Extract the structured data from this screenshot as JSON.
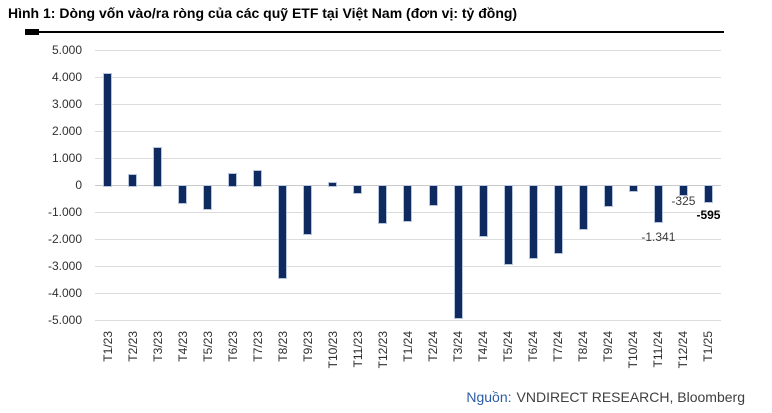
{
  "title": "Hình 1: Dòng vốn vào/ra ròng của các quỹ ETF tại Việt Nam (đơn vị: tỷ đồng)",
  "source": {
    "prefix": "Nguồn:",
    "text": "VNDIRECT RESEARCH, Bloomberg"
  },
  "colors": {
    "bar_fill": "#0f2a5f",
    "bar_border": "#b7c4de",
    "gridline": "#dcdcdc",
    "axis_text": "#303030",
    "source_prefix": "#2b5ca8"
  },
  "chart_data": {
    "type": "bar",
    "title": "Hình 1: Dòng vốn vào/ra ròng của các quỹ ETF tại Việt Nam (đơn vị: tỷ đồng)",
    "xlabel": "",
    "ylabel": "tỷ đồng",
    "ylim": [
      -5000,
      5000
    ],
    "grid": true,
    "y_tick_labels": [
      "5.000",
      "4.000",
      "3.000",
      "2.000",
      "1.000",
      "0",
      "-1.000",
      "-2.000",
      "-3.000",
      "-4.000",
      "-5.000"
    ],
    "categories": [
      "T1/23",
      "T2/23",
      "T3/23",
      "T4/23",
      "T5/23",
      "T6/23",
      "T7/23",
      "T8/23",
      "T9/23",
      "T10/23",
      "T11/23",
      "T12/23",
      "T1/24",
      "T2/24",
      "T3/24",
      "T4/24",
      "T5/24",
      "T6/24",
      "T7/24",
      "T8/24",
      "T9/24",
      "T10/24",
      "T11/24",
      "T12/24",
      "T1/25"
    ],
    "values": [
      4150,
      400,
      1400,
      -620,
      -860,
      450,
      550,
      -3390,
      -1790,
      120,
      -250,
      -1360,
      -1300,
      -700,
      -4880,
      -1850,
      -2880,
      -2650,
      -2470,
      -1600,
      -740,
      -200,
      -1341,
      -325,
      -595
    ],
    "annotations": [
      {
        "index": 22,
        "label": "-1.341",
        "bold": false,
        "dy": 10
      },
      {
        "index": 23,
        "label": "-325",
        "bold": false,
        "dy": 1
      },
      {
        "index": 24,
        "label": "-595",
        "bold": true,
        "dy": 8
      }
    ]
  }
}
